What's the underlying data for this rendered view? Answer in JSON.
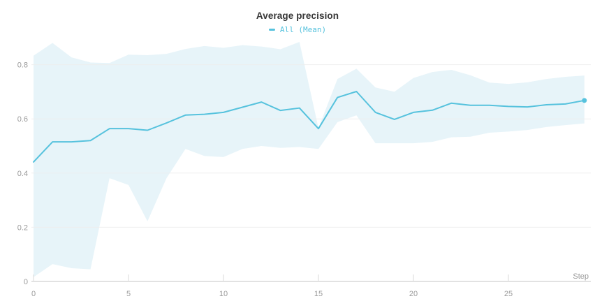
{
  "header": {
    "title": "Average precision"
  },
  "legend": {
    "marker": "legend-line-icon",
    "label": "All (Mean)"
  },
  "chart_data": {
    "type": "line",
    "title": "Average precision",
    "xlabel": "Step",
    "ylabel": "",
    "grid": true,
    "legend_position": "top-center",
    "xlim": [
      0,
      29.3
    ],
    "ylim": [
      0,
      0.9
    ],
    "x": [
      0,
      1,
      2,
      3,
      4,
      5,
      6,
      7,
      8,
      9,
      10,
      11,
      12,
      13,
      14,
      15,
      16,
      17,
      18,
      19,
      20,
      21,
      22,
      23,
      24,
      25,
      26,
      27,
      28,
      29
    ],
    "series": [
      {
        "name": "All (Mean)",
        "values": [
          0.441,
          0.515,
          0.515,
          0.52,
          0.564,
          0.564,
          0.558,
          0.585,
          0.614,
          0.617,
          0.624,
          0.643,
          0.662,
          0.631,
          0.64,
          0.564,
          0.679,
          0.701,
          0.624,
          0.598,
          0.624,
          0.632,
          0.658,
          0.65,
          0.65,
          0.646,
          0.644,
          0.652,
          0.655,
          0.668
        ]
      }
    ],
    "band": {
      "name": "min-max range",
      "upper": [
        0.833,
        0.88,
        0.827,
        0.808,
        0.806,
        0.837,
        0.835,
        0.84,
        0.858,
        0.869,
        0.862,
        0.872,
        0.867,
        0.857,
        0.884,
        0.566,
        0.747,
        0.785,
        0.716,
        0.7,
        0.751,
        0.773,
        0.781,
        0.761,
        0.734,
        0.729,
        0.735,
        0.747,
        0.755,
        0.76
      ],
      "lower": [
        0.016,
        0.064,
        0.049,
        0.045,
        0.381,
        0.356,
        0.222,
        0.381,
        0.489,
        0.463,
        0.459,
        0.489,
        0.5,
        0.493,
        0.496,
        0.489,
        0.588,
        0.613,
        0.51,
        0.51,
        0.51,
        0.515,
        0.532,
        0.534,
        0.549,
        0.553,
        0.559,
        0.57,
        0.577,
        0.583
      ]
    },
    "x_ticks": [
      {
        "v": 0,
        "label": "0"
      },
      {
        "v": 5,
        "label": "5"
      },
      {
        "v": 10,
        "label": "10"
      },
      {
        "v": 15,
        "label": "15"
      },
      {
        "v": 20,
        "label": "20"
      },
      {
        "v": 25,
        "label": "25"
      }
    ],
    "y_ticks": [
      {
        "v": 0,
        "label": "0"
      },
      {
        "v": 0.2,
        "label": "0.2"
      },
      {
        "v": 0.4,
        "label": "0.4"
      },
      {
        "v": 0.6,
        "label": "0.6"
      },
      {
        "v": 0.8,
        "label": "0.8"
      }
    ],
    "colors": {
      "line": "#56c2dd",
      "band": "#e7f4f9",
      "grid": "#ededed",
      "axis": "#e2e2e2",
      "tick": "#d8d8d8",
      "tick_label": "#999999",
      "title": "#363636"
    }
  }
}
